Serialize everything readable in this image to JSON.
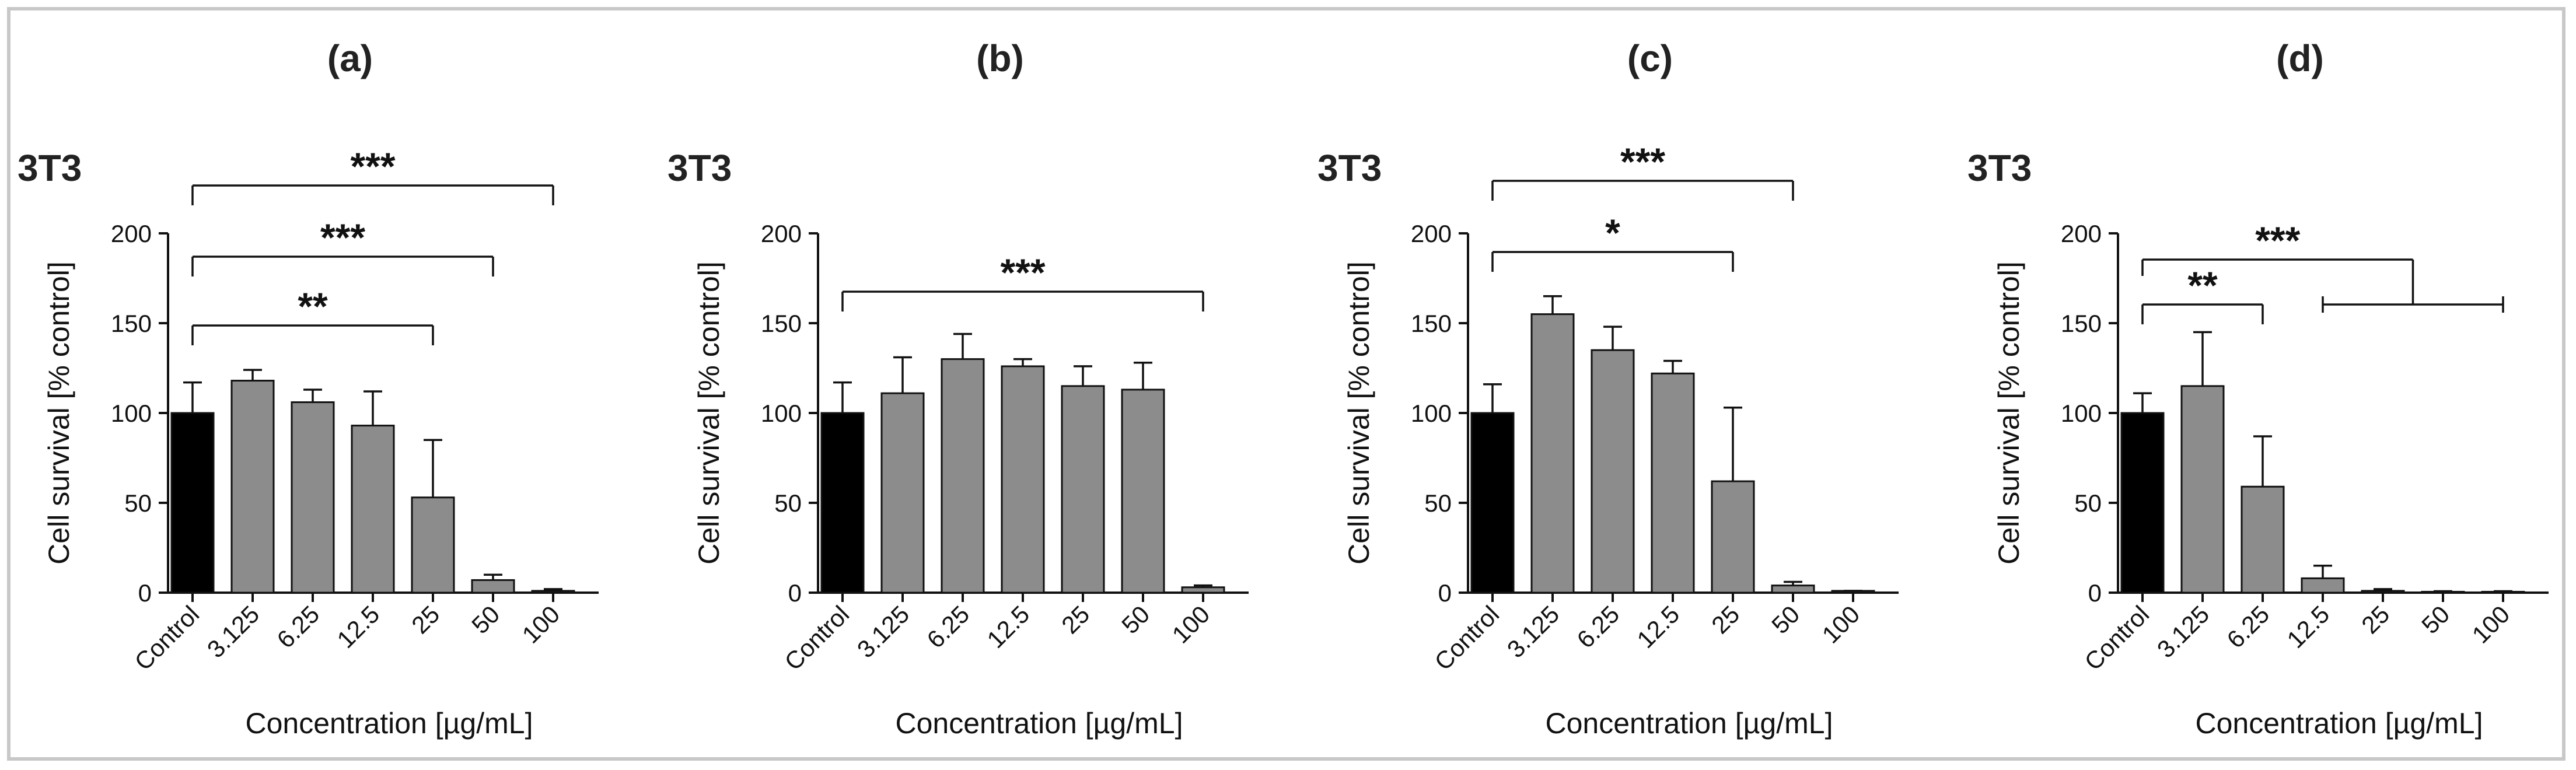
{
  "chart_data": [
    {
      "type": "bar",
      "panel": "(a)",
      "cell_line": "3T3",
      "categories": [
        "Control",
        "3.125",
        "6.25",
        "12.5",
        "25",
        "50",
        "100"
      ],
      "values": [
        100,
        118,
        106,
        93,
        53,
        7,
        1
      ],
      "errors": [
        17,
        6,
        7,
        19,
        32,
        3,
        1
      ],
      "xlabel": "Concentration [µg/mL]",
      "ylabel": "Cell survival [% control]",
      "ylim": [
        0,
        200
      ],
      "yticks": [
        "0",
        "50",
        "100",
        "150",
        "200"
      ],
      "significance": [
        {
          "label": "***",
          "from": "Control",
          "to": "100"
        },
        {
          "label": "***",
          "from": "Control",
          "to": "50"
        },
        {
          "label": "**",
          "from": "Control",
          "to": "25"
        }
      ]
    },
    {
      "type": "bar",
      "panel": "(b)",
      "cell_line": "3T3",
      "categories": [
        "Control",
        "3.125",
        "6.25",
        "12.5",
        "25",
        "50",
        "100"
      ],
      "values": [
        100,
        111,
        130,
        126,
        115,
        113,
        3
      ],
      "errors": [
        17,
        20,
        14,
        4,
        11,
        15,
        1
      ],
      "xlabel": "Concentration [µg/mL]",
      "ylabel": "Cell survival [% control]",
      "ylim": [
        0,
        200
      ],
      "yticks": [
        "0",
        "50",
        "100",
        "150",
        "200"
      ],
      "significance": [
        {
          "label": "***",
          "from": "Control",
          "to": "100"
        }
      ]
    },
    {
      "type": "bar",
      "panel": "(c)",
      "cell_line": "3T3",
      "categories": [
        "Control",
        "3.125",
        "6.25",
        "12.5",
        "25",
        "50",
        "100"
      ],
      "values": [
        100,
        155,
        135,
        122,
        62,
        4,
        1
      ],
      "errors": [
        16,
        10,
        13,
        7,
        41,
        2,
        0
      ],
      "xlabel": "Concentration [µg/mL]",
      "ylabel": "Cell survival [% control]",
      "ylim": [
        0,
        200
      ],
      "yticks": [
        "0",
        "50",
        "100",
        "150",
        "200"
      ],
      "significance": [
        {
          "label": "***",
          "from": "Control",
          "to": "50"
        },
        {
          "label": "*",
          "from": "Control",
          "to": "25"
        }
      ]
    },
    {
      "type": "bar",
      "panel": "(d)",
      "cell_line": "3T3",
      "categories": [
        "Control",
        "3.125",
        "6.25",
        "12.5",
        "25",
        "50",
        "100"
      ],
      "values": [
        100,
        115,
        59,
        8,
        1,
        0.5,
        0.5
      ],
      "errors": [
        11,
        30,
        28,
        7,
        1,
        0.3,
        0.3
      ],
      "xlabel": "Concentration [µg/mL]",
      "ylabel": "Cell survival [% control]",
      "ylim": [
        0,
        200
      ],
      "yticks": [
        "0",
        "50",
        "100",
        "150",
        "200"
      ],
      "significance": [
        {
          "label": "***",
          "from": "Control",
          "to_range": [
            "12.5",
            "100"
          ]
        },
        {
          "label": "**",
          "from": "Control",
          "to": "6.25"
        }
      ]
    }
  ],
  "colors": {
    "control_bar": "#000000",
    "treatment_bar": "#8c8c8c",
    "axis": "#111111",
    "frame": "#c8c8c8"
  }
}
